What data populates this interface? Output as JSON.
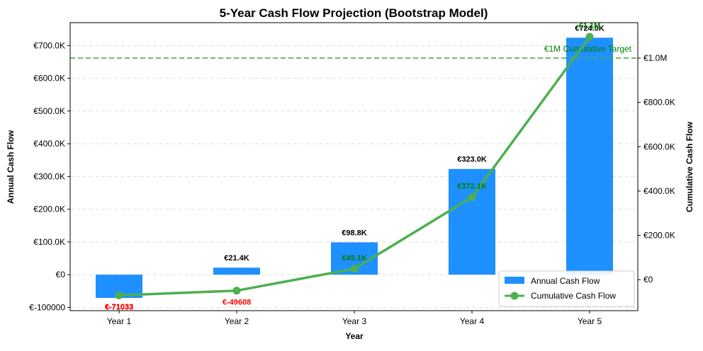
{
  "chart_data": {
    "type": "bar",
    "title": "5-Year Cash Flow Projection (Bootstrap Model)",
    "xlabel": "Year",
    "ylabel_left": "Annual Cash Flow",
    "ylabel_right": "Cumulative Cash Flow",
    "categories": [
      "Year 1",
      "Year 2",
      "Year 3",
      "Year 4",
      "Year 5"
    ],
    "ylim_left": [
      -110000,
      770000
    ],
    "ylim_right": [
      -140000,
      1160000
    ],
    "y_ticks_left": [
      {
        "value": -100000,
        "label": "€-100000"
      },
      {
        "value": 0,
        "label": "€0"
      },
      {
        "value": 100000,
        "label": "€100.0K"
      },
      {
        "value": 200000,
        "label": "€200.0K"
      },
      {
        "value": 300000,
        "label": "€300.0K"
      },
      {
        "value": 400000,
        "label": "€400.0K"
      },
      {
        "value": 500000,
        "label": "€500.0K"
      },
      {
        "value": 600000,
        "label": "€600.0K"
      },
      {
        "value": 700000,
        "label": "€700.0K"
      }
    ],
    "y_ticks_right": [
      {
        "value": 0,
        "label": "€0"
      },
      {
        "value": 200000,
        "label": "€200.0K"
      },
      {
        "value": 400000,
        "label": "€400.0K"
      },
      {
        "value": 600000,
        "label": "€600.0K"
      },
      {
        "value": 800000,
        "label": "€800.0K"
      },
      {
        "value": 1000000,
        "label": "€1.0M"
      }
    ],
    "series": [
      {
        "name": "Annual Cash Flow",
        "kind": "bar",
        "axis": "left",
        "color": "#1e90ff",
        "values": [
          -71033,
          21425,
          98755,
          323000,
          724000
        ],
        "labels": [
          "€-71033",
          "€21.4K",
          "€98.8K",
          "€323.0K",
          "€724.0K"
        ]
      },
      {
        "name": "Cumulative Cash Flow",
        "kind": "line",
        "axis": "right",
        "color": "#4caf50",
        "values": [
          -71033,
          -49608,
          49147,
          372147,
          1096147
        ],
        "labels": [
          "€-71033",
          "€-49608",
          "€49.1K",
          "€372.1K",
          "€1.1M"
        ]
      }
    ],
    "target": {
      "value": 1000000,
      "axis": "right",
      "label": "€1M Cumulative Target",
      "color": "#4caf50"
    },
    "legend_position": "lower-right",
    "grid": "horizontal-dashed"
  }
}
